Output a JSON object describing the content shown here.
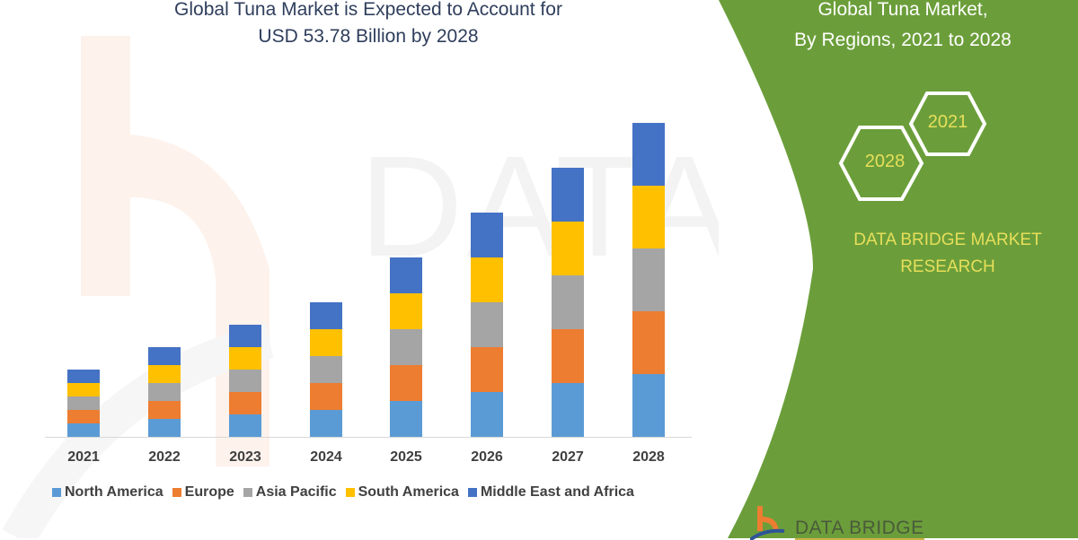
{
  "header": {
    "title_line1": "Global Tuna Market is Expected to Account for",
    "title_line2": "USD 53.78 Billion by 2028"
  },
  "side_panel": {
    "title_line1": "Global Tuna Market,",
    "title_line2": "By Regions, 2021 to 2028",
    "hex_start_year": "2021",
    "hex_end_year": "2028",
    "brand_line1": "DATA BRIDGE MARKET",
    "brand_line2": "RESEARCH",
    "logo_text": "DATA BRIDGE",
    "panel_color": "#6b9e3a",
    "accent_text_color": "#e7df5a"
  },
  "colors": {
    "North America": "#5b9bd5",
    "Europe": "#ed7d31",
    "Asia Pacific": "#a5a5a5",
    "South America": "#ffc000",
    "Middle East and Africa": "#4472c4"
  },
  "legend": [
    {
      "label": "North America",
      "color": "#5b9bd5"
    },
    {
      "label": "Europe",
      "color": "#ed7d31"
    },
    {
      "label": "Asia Pacific",
      "color": "#a5a5a5"
    },
    {
      "label": "South America",
      "color": "#ffc000"
    },
    {
      "label": "Middle East and Africa",
      "color": "#4472c4"
    }
  ],
  "chart_data": {
    "type": "bar",
    "stacked": true,
    "title": "Global Tuna Market is Expected to Account for USD 53.78 Billion by 2028",
    "xlabel": "",
    "ylabel": "",
    "grid": false,
    "y_axis_shown": false,
    "legend_position": "bottom",
    "units_note": "Relative segment heights (pixels); no y-axis values are shown",
    "categories": [
      "2021",
      "2022",
      "2023",
      "2024",
      "2025",
      "2026",
      "2027",
      "2028"
    ],
    "series": [
      {
        "name": "North America",
        "values": [
          15,
          20,
          25,
          30,
          40,
          50,
          60,
          70
        ]
      },
      {
        "name": "Europe",
        "values": [
          15,
          20,
          25,
          30,
          40,
          50,
          60,
          70
        ]
      },
      {
        "name": "Asia Pacific",
        "values": [
          15,
          20,
          25,
          30,
          40,
          50,
          60,
          70
        ]
      },
      {
        "name": "South America",
        "values": [
          15,
          20,
          25,
          30,
          40,
          50,
          60,
          70
        ]
      },
      {
        "name": "Middle East and Africa",
        "values": [
          15,
          20,
          25,
          30,
          40,
          50,
          60,
          70
        ]
      }
    ]
  }
}
